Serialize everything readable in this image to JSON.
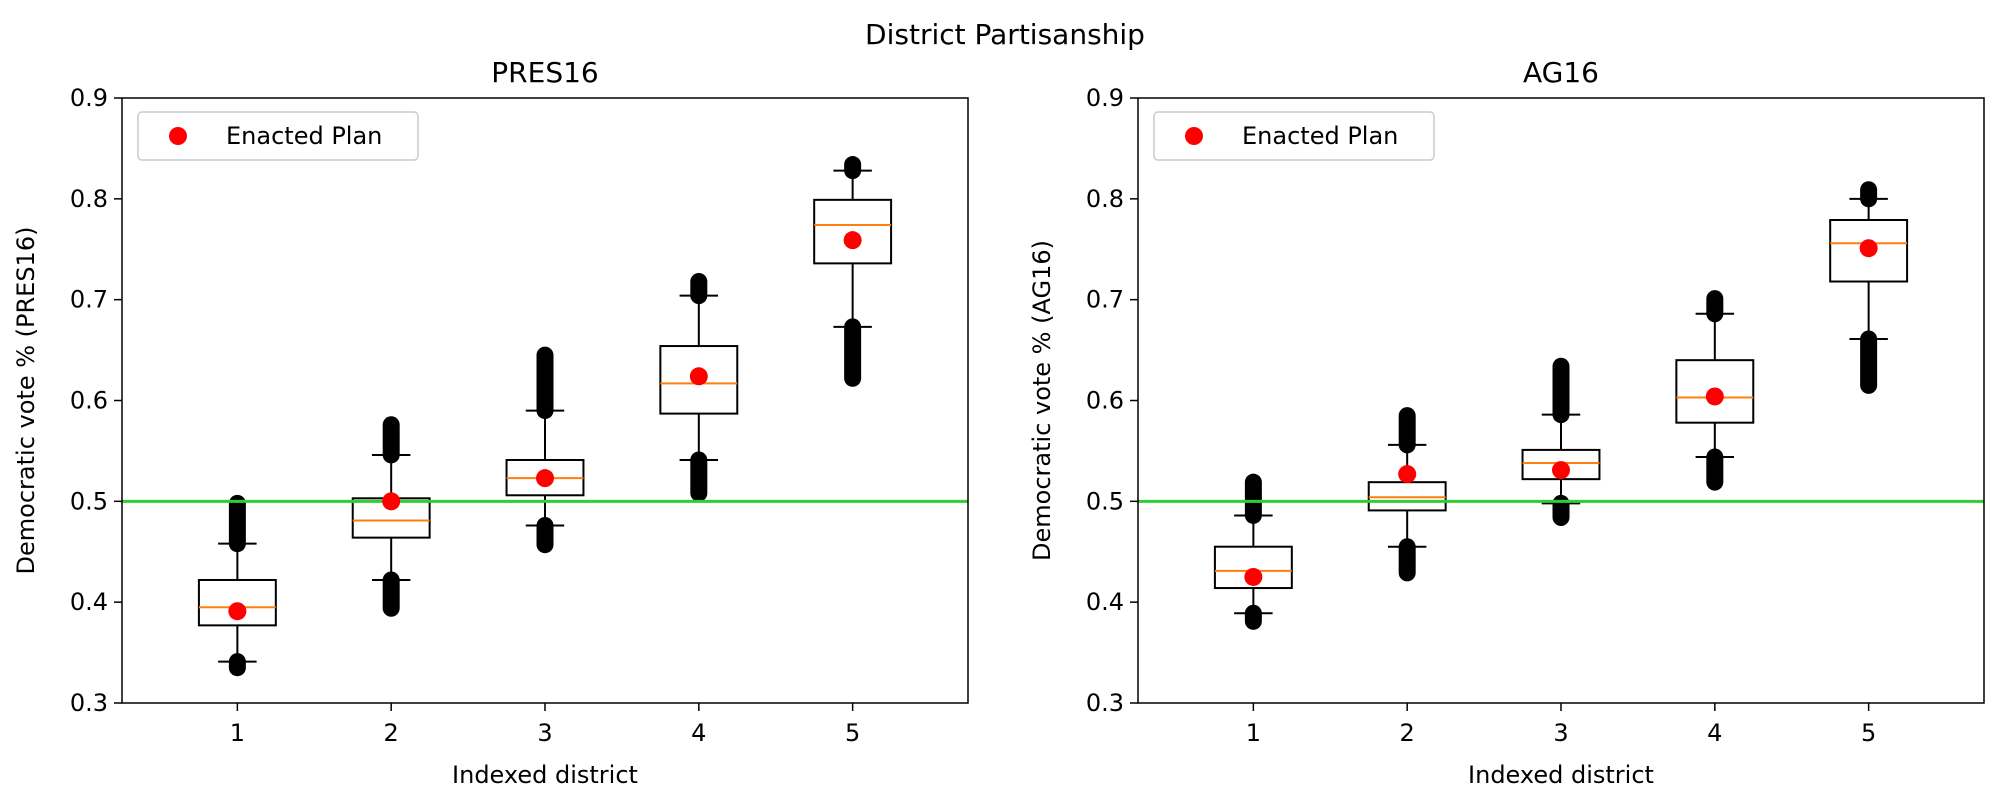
{
  "figure": {
    "suptitle": "District Partisanship"
  },
  "colors": {
    "threshold": "#32cd32",
    "median": "#ff7f0e",
    "enacted": "#ff0000",
    "box": "#000000",
    "legend_border": "#cccccc"
  },
  "chart_data": [
    {
      "type": "box",
      "title": "PRES16",
      "xlabel": "Indexed district",
      "ylabel": "Democratic vote % (PRES16)",
      "ylim": [
        0.3,
        0.9
      ],
      "yticks": [
        0.3,
        0.4,
        0.5,
        0.6,
        0.7,
        0.8,
        0.9
      ],
      "yticklabels": [
        "0.3",
        "0.4",
        "0.5",
        "0.6",
        "0.7",
        "0.8",
        "0.9"
      ],
      "categories": [
        "1",
        "2",
        "3",
        "4",
        "5"
      ],
      "threshold": 0.5,
      "legend": {
        "label": "Enacted Plan",
        "loc": "upper left"
      },
      "boxes": [
        {
          "q1": 0.377,
          "median": 0.395,
          "q3": 0.422,
          "whislo": 0.341,
          "whishi": 0.458,
          "fliers_low": [
            0.341,
            0.335
          ],
          "fliers_high": [
            0.458,
            0.498
          ]
        },
        {
          "q1": 0.464,
          "median": 0.481,
          "q3": 0.503,
          "whislo": 0.422,
          "whishi": 0.546,
          "fliers_low": [
            0.422,
            0.394
          ],
          "fliers_high": [
            0.546,
            0.576
          ]
        },
        {
          "q1": 0.506,
          "median": 0.523,
          "q3": 0.541,
          "whislo": 0.476,
          "whishi": 0.59,
          "fliers_low": [
            0.476,
            0.457
          ],
          "fliers_high": [
            0.59,
            0.645
          ]
        },
        {
          "q1": 0.587,
          "median": 0.617,
          "q3": 0.654,
          "whislo": 0.541,
          "whishi": 0.704,
          "fliers_low": [
            0.541,
            0.508
          ],
          "fliers_high": [
            0.704,
            0.718
          ]
        },
        {
          "q1": 0.736,
          "median": 0.774,
          "q3": 0.799,
          "whislo": 0.673,
          "whishi": 0.828,
          "fliers_low": [
            0.673,
            0.622
          ],
          "fliers_high": [
            0.828,
            0.834
          ]
        }
      ],
      "enacted": [
        0.391,
        0.5,
        0.523,
        0.624,
        0.759
      ]
    },
    {
      "type": "box",
      "title": "AG16",
      "xlabel": "Indexed district",
      "ylabel": "Democratic vote % (AG16)",
      "ylim": [
        0.3,
        0.9
      ],
      "yticks": [
        0.3,
        0.4,
        0.5,
        0.6,
        0.7,
        0.8,
        0.9
      ],
      "yticklabels": [
        "0.3",
        "0.4",
        "0.5",
        "0.6",
        "0.7",
        "0.8",
        "0.9"
      ],
      "categories": [
        "1",
        "2",
        "3",
        "4",
        "5"
      ],
      "threshold": 0.5,
      "legend": {
        "label": "Enacted Plan",
        "loc": "upper left"
      },
      "boxes": [
        {
          "q1": 0.414,
          "median": 0.431,
          "q3": 0.455,
          "whislo": 0.389,
          "whishi": 0.486,
          "fliers_low": [
            0.389,
            0.381
          ],
          "fliers_high": [
            0.486,
            0.519
          ]
        },
        {
          "q1": 0.491,
          "median": 0.504,
          "q3": 0.519,
          "whislo": 0.455,
          "whishi": 0.556,
          "fliers_low": [
            0.455,
            0.429
          ],
          "fliers_high": [
            0.556,
            0.585
          ]
        },
        {
          "q1": 0.522,
          "median": 0.538,
          "q3": 0.551,
          "whislo": 0.498,
          "whishi": 0.586,
          "fliers_low": [
            0.498,
            0.484
          ],
          "fliers_high": [
            0.586,
            0.634
          ]
        },
        {
          "q1": 0.578,
          "median": 0.603,
          "q3": 0.64,
          "whislo": 0.544,
          "whishi": 0.686,
          "fliers_low": [
            0.544,
            0.519
          ],
          "fliers_high": [
            0.686,
            0.701
          ]
        },
        {
          "q1": 0.718,
          "median": 0.756,
          "q3": 0.779,
          "whislo": 0.661,
          "whishi": 0.8,
          "fliers_low": [
            0.661,
            0.615
          ],
          "fliers_high": [
            0.8,
            0.809
          ]
        }
      ],
      "enacted": [
        0.425,
        0.527,
        0.531,
        0.604,
        0.751
      ]
    }
  ]
}
